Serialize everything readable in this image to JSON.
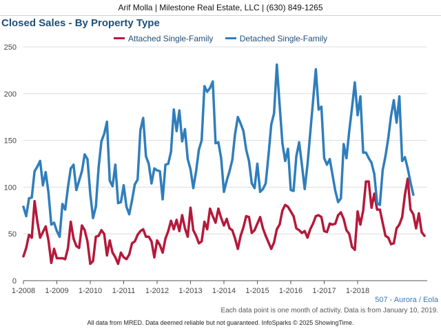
{
  "header": {
    "contact": "Arif Molla | Milestone Real Estate, LLC | (630) 849-1265"
  },
  "region_label": "507 - Aurora / Eola",
  "footnote": "Each data point is one month of activity. Data is from January 10, 2019.",
  "disclaimer": "All data from MRED. Data deemed reliable but not guaranteed. InfoSparks © 2025 ShowingTime.",
  "chart_data": {
    "type": "line",
    "title": "Closed Sales - By Property Type",
    "xlabel": "",
    "ylabel": "",
    "ylim": [
      0,
      250
    ],
    "yticks": [
      0,
      50,
      100,
      150,
      200,
      250
    ],
    "xlim": [
      "2008-01",
      "2018-12"
    ],
    "xticks": [
      "1-2008",
      "1-2009",
      "1-2010",
      "1-2011",
      "1-2012",
      "1-2013",
      "1-2014",
      "1-2015",
      "1-2016",
      "1-2017",
      "1-2018"
    ],
    "grid": "horizontal",
    "legend": "top-center",
    "series": [
      {
        "name": "Attached Single-Family",
        "color": "#b5193a",
        "values": [
          26,
          35,
          49,
          46,
          85,
          63,
          46,
          52,
          58,
          43,
          19,
          34,
          24,
          24,
          24,
          23,
          35,
          63,
          45,
          37,
          35,
          59,
          54,
          42,
          18,
          21,
          47,
          48,
          54,
          50,
          27,
          43,
          30,
          25,
          18,
          30,
          25,
          23,
          28,
          40,
          42,
          49,
          53,
          55,
          47,
          47,
          42,
          25,
          43,
          38,
          30,
          45,
          53,
          64,
          55,
          65,
          53,
          70,
          56,
          47,
          78,
          54,
          48,
          40,
          42,
          63,
          55,
          77,
          69,
          62,
          77,
          67,
          59,
          66,
          56,
          54,
          45,
          34,
          48,
          57,
          69,
          68,
          51,
          54,
          61,
          68,
          56,
          48,
          41,
          34,
          41,
          55,
          60,
          75,
          81,
          79,
          74,
          69,
          56,
          54,
          51,
          53,
          46,
          55,
          61,
          69,
          70,
          68,
          53,
          52,
          61,
          60,
          61,
          70,
          73,
          66,
          54,
          50,
          36,
          33,
          74,
          60,
          75,
          106,
          106,
          78,
          93,
          76,
          76,
          62,
          48,
          46,
          39,
          40,
          56,
          60,
          68,
          92,
          109,
          76,
          71,
          56,
          72,
          52,
          48
        ]
      },
      {
        "name": "Detached Single-Family",
        "color": "#2f7ebc",
        "values": [
          79,
          69,
          88,
          89,
          117,
          122,
          128,
          102,
          116,
          94,
          60,
          62,
          53,
          47,
          82,
          76,
          100,
          120,
          124,
          97,
          107,
          117,
          135,
          130,
          93,
          67,
          79,
          121,
          149,
          157,
          170,
          107,
          101,
          124,
          83,
          84,
          102,
          79,
          71,
          86,
          103,
          108,
          161,
          174,
          133,
          125,
          104,
          120,
          118,
          117,
          87,
          124,
          125,
          138,
          183,
          160,
          182,
          149,
          162,
          130,
          119,
          99,
          117,
          140,
          150,
          208,
          202,
          206,
          213,
          147,
          148,
          131,
          95,
          107,
          117,
          129,
          157,
          175,
          168,
          160,
          140,
          128,
          104,
          99,
          125,
          95,
          98,
          104,
          134,
          167,
          179,
          231,
          188,
          147,
          128,
          141,
          97,
          96,
          133,
          148,
          124,
          98,
          124,
          158,
          192,
          226,
          183,
          186,
          131,
          124,
          130,
          113,
          96,
          84,
          88,
          146,
          131,
          160,
          185,
          212,
          177,
          197,
          137,
          137,
          131,
          126,
          114,
          83,
          81,
          118,
          133,
          152,
          176,
          193,
          169,
          197,
          128,
          132,
          120,
          105,
          92
        ]
      }
    ]
  }
}
